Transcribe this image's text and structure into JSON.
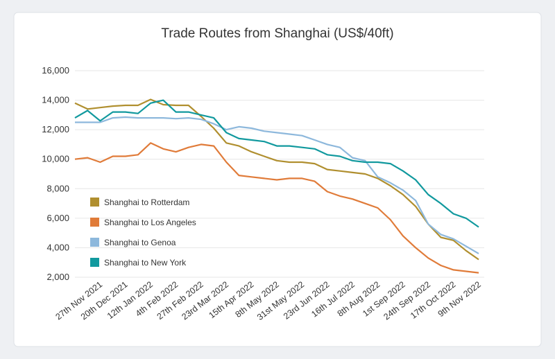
{
  "chart_data": {
    "type": "line",
    "title": "Trade Routes from Shanghai (US$/40ft)",
    "categories": [
      null,
      null,
      "27th Nov 2021",
      null,
      "20th Dec 2021",
      null,
      "12th Jan 2022",
      null,
      "4th Feb 2022",
      null,
      "27th Feb 2022",
      null,
      "23rd Mar 2022",
      null,
      "15th Apr 2022",
      null,
      "8th May 2022",
      null,
      "31st May 2022",
      null,
      "23rd Jun 2022",
      null,
      "16th Jul 2022",
      null,
      "8th Aug 2022",
      null,
      "1st Sep 2022",
      null,
      "24th Sep 2022",
      null,
      "17th Oct 2022",
      null,
      "9th Nov 2022"
    ],
    "series": [
      {
        "name": "Shanghai to Rotterdam",
        "color": "#b08f2f",
        "values": [
          13800,
          13400,
          13500,
          13600,
          13650,
          13650,
          14050,
          13700,
          13650,
          13650,
          12900,
          12100,
          11100,
          10900,
          10500,
          10200,
          9900,
          9800,
          9800,
          9700,
          9300,
          9200,
          9100,
          9000,
          8700,
          8200,
          7600,
          6800,
          5600,
          4700,
          4500,
          3800,
          3200
        ]
      },
      {
        "name": "Shanghai to Los Angeles",
        "color": "#e07b39",
        "values": [
          10000,
          10100,
          9800,
          10200,
          10200,
          10300,
          11100,
          10700,
          10500,
          10800,
          11000,
          10900,
          9800,
          8900,
          8800,
          8700,
          8600,
          8700,
          8700,
          8500,
          7800,
          7500,
          7300,
          7000,
          6700,
          5900,
          4800,
          4000,
          3300,
          2800,
          2500,
          2400,
          2300
        ]
      },
      {
        "name": "Shanghai to Genoa",
        "color": "#8db8dc",
        "values": [
          12500,
          12500,
          12500,
          12800,
          12850,
          12800,
          12800,
          12800,
          12750,
          12800,
          12700,
          12400,
          12000,
          12200,
          12100,
          11900,
          11800,
          11700,
          11600,
          11300,
          11000,
          10800,
          10100,
          9900,
          8800,
          8400,
          7900,
          7200,
          5600,
          4900,
          4600,
          4100,
          3600
        ]
      },
      {
        "name": "Shanghai to New York",
        "color": "#11999e",
        "values": [
          12800,
          13300,
          12600,
          13200,
          13200,
          13100,
          13800,
          14000,
          13200,
          13200,
          13000,
          12800,
          11800,
          11400,
          11300,
          11200,
          10900,
          10900,
          10800,
          10700,
          10300,
          10200,
          9900,
          9800,
          9800,
          9700,
          9200,
          8600,
          7600,
          7000,
          6300,
          6000,
          5400
        ]
      }
    ],
    "ylim": [
      2000,
      16000
    ],
    "yticks": [
      {
        "value": 2000,
        "label": "2,000"
      },
      {
        "value": 4000,
        "label": "4,000"
      },
      {
        "value": 6000,
        "label": "6,000"
      },
      {
        "value": 8000,
        "label": "8,000"
      },
      {
        "value": 10000,
        "label": "10,000"
      },
      {
        "value": 12000,
        "label": "12,000"
      },
      {
        "value": 14000,
        "label": "14,000"
      },
      {
        "value": 16000,
        "label": "16,000"
      }
    ],
    "grid": true,
    "legend": "lower left"
  }
}
